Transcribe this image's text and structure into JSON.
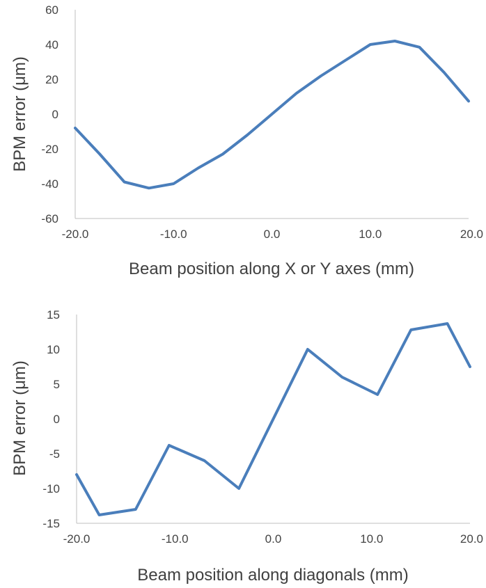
{
  "chart_data": [
    {
      "type": "line",
      "title": "",
      "xlabel": "Beam position along X or Y axes (mm)",
      "ylabel": "BPM error (μm)",
      "xlim": [
        -20,
        20
      ],
      "ylim": [
        -60,
        60
      ],
      "x_ticks": [
        "-20.0",
        "-10.0",
        "0.0",
        "10.0",
        "20.0"
      ],
      "x_tick_values": [
        -20,
        -10,
        0,
        10,
        20
      ],
      "y_ticks": [
        "60",
        "40",
        "20",
        "0",
        "-20",
        "-40",
        "-60"
      ],
      "y_tick_values": [
        60,
        40,
        20,
        0,
        -20,
        -40,
        -60
      ],
      "grid": false,
      "color": "#4a7ebb",
      "series": [
        {
          "x": [
            -20,
            -17.5,
            -15,
            -12.5,
            -10,
            -7.5,
            -5,
            -2.5,
            0,
            2.5,
            5,
            7.5,
            10,
            12.5,
            15,
            17.5,
            20
          ],
          "y": [
            -8,
            -23,
            -39,
            -42.5,
            -40,
            -31,
            -23,
            -12,
            0,
            12,
            22,
            31,
            40,
            42,
            38.5,
            24,
            7.5
          ]
        }
      ]
    },
    {
      "type": "line",
      "title": "",
      "xlabel": "Beam position along diagonals (mm)",
      "ylabel": "BPM error (μm)",
      "xlim": [
        -20,
        20
      ],
      "ylim": [
        -15,
        15
      ],
      "x_ticks": [
        "-20.0",
        "-10.0",
        "0.0",
        "10.0",
        "20.0"
      ],
      "x_tick_values": [
        -20,
        -10,
        0,
        10,
        20
      ],
      "y_ticks": [
        "15",
        "10",
        "5",
        "0",
        "-5",
        "-10",
        "-15"
      ],
      "y_tick_values": [
        15,
        10,
        5,
        0,
        -5,
        -10,
        -15
      ],
      "grid": false,
      "color": "#4a7ebb",
      "series": [
        {
          "x": [
            -20,
            -17.7,
            -14,
            -10.6,
            -7,
            -3.5,
            0,
            3.5,
            7,
            10.6,
            14,
            17.7,
            20
          ],
          "y": [
            -8,
            -13.8,
            -13,
            -3.8,
            -6,
            -10,
            0,
            10,
            6,
            3.5,
            12.8,
            13.7,
            7.5
          ]
        }
      ]
    }
  ]
}
